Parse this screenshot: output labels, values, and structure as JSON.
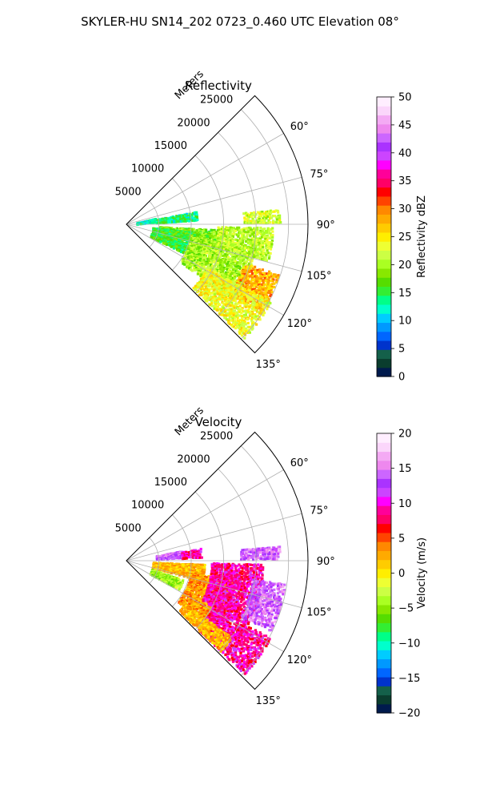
{
  "figure": {
    "title": "SKYLER-HU  SN14_202  0723_0.460 UTC Elevation 08°"
  },
  "chart_data": [
    {
      "type": "heatmap",
      "projection": "polar-sector",
      "title": "Reflectivity",
      "range_label": "Meters",
      "range_ticks": [
        5000,
        10000,
        15000,
        20000,
        25000
      ],
      "rlim": [
        0,
        28000
      ],
      "azimuth_ticks": [
        "60°",
        "75°",
        "90°",
        "105°",
        "120°",
        "135°"
      ],
      "azimuth_tick_values": [
        60,
        75,
        90,
        105,
        120,
        135
      ],
      "azimuth_range": [
        45,
        135
      ],
      "grid": true,
      "colorbar": {
        "label": "Reflectivity dBZ",
        "ticks": [
          "0",
          "5",
          "10",
          "15",
          "20",
          "25",
          "30",
          "35",
          "40",
          "45",
          "50"
        ],
        "range": [
          0,
          50
        ],
        "colors": [
          "#001a4d",
          "#0a3d2e",
          "#14604a",
          "#0033cc",
          "#0066ff",
          "#0099ff",
          "#00ccff",
          "#00ffcc",
          "#00ff88",
          "#33ee33",
          "#55dd00",
          "#88e800",
          "#aaff22",
          "#ccff44",
          "#eeff33",
          "#ffee00",
          "#ffcc00",
          "#ffaa00",
          "#ff8800",
          "#ff4400",
          "#ff0000",
          "#ff0066",
          "#ff0099",
          "#ff00ff",
          "#cc44ff",
          "#aa33ff",
          "#cc66ff",
          "#ee88ee",
          "#f4aaf4",
          "#fbd6fb",
          "#ffeeff"
        ]
      },
      "regions": [
        {
          "az": [
            77,
            84
          ],
          "r": [
            1500,
            4500
          ],
          "value": 12
        },
        {
          "az": [
            79,
            86
          ],
          "r": [
            4500,
            11000
          ],
          "value": 14
        },
        {
          "az": [
            84,
            89
          ],
          "r": [
            18000,
            23500
          ],
          "value": 22
        },
        {
          "az": [
            93,
            103
          ],
          "r": [
            5000,
            14000
          ],
          "value": 18
        },
        {
          "az": [
            96,
            116
          ],
          "r": [
            4000,
            11000
          ],
          "value": 16
        },
        {
          "az": [
            100,
            125
          ],
          "r": [
            10000,
            20000
          ],
          "value": 20
        },
        {
          "az": [
            91,
            104
          ],
          "r": [
            14000,
            22500
          ],
          "value": 21
        },
        {
          "az": [
            108,
            123
          ],
          "r": [
            19000,
            24500
          ],
          "value": 28
        },
        {
          "az": [
            118,
            134
          ],
          "r": [
            14000,
            25000
          ],
          "value": 24
        }
      ]
    },
    {
      "type": "heatmap",
      "projection": "polar-sector",
      "title": "Velocity",
      "range_label": "Meters",
      "range_ticks": [
        5000,
        10000,
        15000,
        20000,
        25000
      ],
      "rlim": [
        0,
        28000
      ],
      "azimuth_ticks": [
        "60°",
        "75°",
        "90°",
        "105°",
        "120°",
        "135°"
      ],
      "azimuth_tick_values": [
        60,
        75,
        90,
        105,
        120,
        135
      ],
      "azimuth_range": [
        45,
        135
      ],
      "grid": true,
      "colorbar": {
        "label": "Velocity (m/s)",
        "ticks": [
          "−20",
          "−15",
          "−10",
          "−5",
          "0",
          "5",
          "10",
          "15",
          "20"
        ],
        "range": [
          -20,
          20
        ],
        "colors": [
          "#001a4d",
          "#0a3d2e",
          "#14604a",
          "#0033cc",
          "#0066ff",
          "#0099ff",
          "#00ccff",
          "#00ffcc",
          "#00ff88",
          "#33ee33",
          "#55dd00",
          "#88e800",
          "#aaff22",
          "#ccff44",
          "#eeff33",
          "#ffee00",
          "#ffcc00",
          "#ffaa00",
          "#ff8800",
          "#ff4400",
          "#ff0000",
          "#ff0066",
          "#ff0099",
          "#ff00ff",
          "#cc44ff",
          "#aa33ff",
          "#cc66ff",
          "#ee88ee",
          "#f4aaf4",
          "#fbd6fb",
          "#ffeeff"
        ]
      },
      "regions": [
        {
          "az": [
            79,
            86
          ],
          "r": [
            4500,
            8500
          ],
          "value": 14
        },
        {
          "az": [
            80,
            87
          ],
          "r": [
            8500,
            11500
          ],
          "value": 9
        },
        {
          "az": [
            84,
            89
          ],
          "r": [
            17500,
            23500
          ],
          "value": 14
        },
        {
          "az": [
            92,
            104
          ],
          "r": [
            4000,
            12000
          ],
          "value": 2
        },
        {
          "az": [
            108,
            118
          ],
          "r": [
            4000,
            9000
          ],
          "value": -4
        },
        {
          "az": [
            100,
            128
          ],
          "r": [
            10000,
            17000
          ],
          "value": 3
        },
        {
          "az": [
            91,
            118
          ],
          "r": [
            13000,
            21000
          ],
          "value": 9
        },
        {
          "az": [
            98,
            116
          ],
          "r": [
            19500,
            24500
          ],
          "value": 14
        },
        {
          "az": [
            118,
            134
          ],
          "r": [
            15000,
            25000
          ],
          "value": 9
        },
        {
          "az": [
            126,
            134
          ],
          "r": [
            11000,
            20000
          ],
          "value": 2
        }
      ]
    }
  ]
}
